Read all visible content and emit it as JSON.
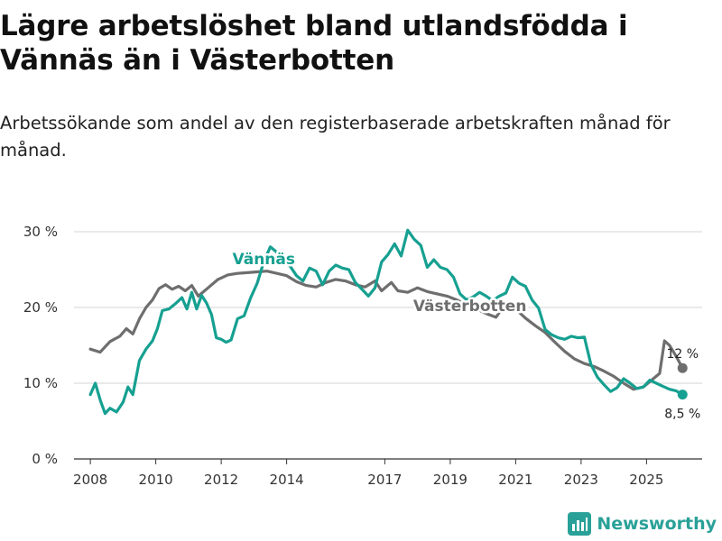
{
  "title": "Lägre arbetslöshet bland utlandsfödda i Vännäs än i Västerbotten",
  "subtitle": "Arbetssökande som andel av den registerbaserade arbetskraften månad för månad.",
  "brand": {
    "name": "Newsworthy",
    "icon": "newsworthy-logo-icon",
    "color": "#2aa198"
  },
  "chart_data": {
    "type": "line",
    "ylim": [
      0,
      30
    ],
    "xlim": [
      2007.5,
      2026.7
    ],
    "y_ticks": [
      {
        "value": 0,
        "label": "0 %"
      },
      {
        "value": 10,
        "label": "10 %"
      },
      {
        "value": 20,
        "label": "20 %"
      },
      {
        "value": 30,
        "label": "30 %"
      }
    ],
    "x_ticks": [
      {
        "value": 2008,
        "label": "2008"
      },
      {
        "value": 2010,
        "label": "2010"
      },
      {
        "value": 2012,
        "label": "2012"
      },
      {
        "value": 2014,
        "label": "2014"
      },
      {
        "value": 2017,
        "label": "2017"
      },
      {
        "value": 2019,
        "label": "2019"
      },
      {
        "value": 2021,
        "label": "2021"
      },
      {
        "value": 2023,
        "label": "2023"
      },
      {
        "value": 2025,
        "label": "2025"
      }
    ],
    "grid": true,
    "series": [
      {
        "name": "Västerbotten",
        "color": "#6e6e6e",
        "end_label": "12 %",
        "points": [
          [
            2008.0,
            14.5
          ],
          [
            2008.3,
            14.1
          ],
          [
            2008.6,
            15.5
          ],
          [
            2008.9,
            16.2
          ],
          [
            2009.1,
            17.2
          ],
          [
            2009.3,
            16.5
          ],
          [
            2009.5,
            18.5
          ],
          [
            2009.7,
            20.0
          ],
          [
            2009.9,
            21.0
          ],
          [
            2010.1,
            22.5
          ],
          [
            2010.3,
            23.0
          ],
          [
            2010.5,
            22.4
          ],
          [
            2010.7,
            22.8
          ],
          [
            2010.9,
            22.2
          ],
          [
            2011.1,
            22.9
          ],
          [
            2011.3,
            21.5
          ],
          [
            2011.6,
            22.6
          ],
          [
            2011.9,
            23.7
          ],
          [
            2012.2,
            24.3
          ],
          [
            2012.5,
            24.5
          ],
          [
            2012.8,
            24.6
          ],
          [
            2013.1,
            24.7
          ],
          [
            2013.4,
            24.8
          ],
          [
            2013.7,
            24.5
          ],
          [
            2014.0,
            24.2
          ],
          [
            2014.3,
            23.4
          ],
          [
            2014.6,
            22.9
          ],
          [
            2014.9,
            22.7
          ],
          [
            2015.2,
            23.3
          ],
          [
            2015.5,
            23.7
          ],
          [
            2015.8,
            23.5
          ],
          [
            2016.1,
            23.0
          ],
          [
            2016.4,
            22.7
          ],
          [
            2016.7,
            23.5
          ],
          [
            2016.9,
            22.2
          ],
          [
            2017.2,
            23.3
          ],
          [
            2017.4,
            22.2
          ],
          [
            2017.7,
            22.0
          ],
          [
            2018.0,
            22.6
          ],
          [
            2018.3,
            22.1
          ],
          [
            2018.6,
            21.8
          ],
          [
            2018.9,
            21.5
          ],
          [
            2019.2,
            21.0
          ],
          [
            2019.5,
            20.3
          ],
          [
            2019.8,
            19.8
          ],
          [
            2020.1,
            19.2
          ],
          [
            2020.4,
            18.7
          ],
          [
            2020.7,
            20.6
          ],
          [
            2021.0,
            19.8
          ],
          [
            2021.3,
            18.6
          ],
          [
            2021.6,
            17.6
          ],
          [
            2021.9,
            16.7
          ],
          [
            2022.2,
            15.4
          ],
          [
            2022.5,
            14.2
          ],
          [
            2022.8,
            13.2
          ],
          [
            2023.1,
            12.6
          ],
          [
            2023.4,
            12.2
          ],
          [
            2023.7,
            11.6
          ],
          [
            2024.0,
            10.9
          ],
          [
            2024.3,
            10.0
          ],
          [
            2024.6,
            9.2
          ],
          [
            2024.9,
            9.5
          ],
          [
            2025.1,
            10.2
          ],
          [
            2025.4,
            11.3
          ],
          [
            2025.55,
            15.6
          ],
          [
            2025.7,
            15.0
          ],
          [
            2025.9,
            13.6
          ],
          [
            2026.1,
            12.0
          ]
        ]
      },
      {
        "name": "Vännäs",
        "color": "#16a091",
        "end_label": "8,5 %",
        "points": [
          [
            2008.0,
            8.5
          ],
          [
            2008.15,
            10.0
          ],
          [
            2008.3,
            7.8
          ],
          [
            2008.45,
            6.0
          ],
          [
            2008.6,
            6.7
          ],
          [
            2008.8,
            6.2
          ],
          [
            2009.0,
            7.5
          ],
          [
            2009.15,
            9.5
          ],
          [
            2009.3,
            8.5
          ],
          [
            2009.5,
            13.0
          ],
          [
            2009.7,
            14.5
          ],
          [
            2009.9,
            15.6
          ],
          [
            2010.05,
            17.2
          ],
          [
            2010.2,
            19.6
          ],
          [
            2010.4,
            19.8
          ],
          [
            2010.6,
            20.5
          ],
          [
            2010.8,
            21.3
          ],
          [
            2010.95,
            19.8
          ],
          [
            2011.1,
            22.0
          ],
          [
            2011.25,
            19.8
          ],
          [
            2011.4,
            21.6
          ],
          [
            2011.55,
            20.6
          ],
          [
            2011.7,
            19.1
          ],
          [
            2011.85,
            16.0
          ],
          [
            2012.0,
            15.8
          ],
          [
            2012.15,
            15.4
          ],
          [
            2012.3,
            15.7
          ],
          [
            2012.5,
            18.5
          ],
          [
            2012.7,
            18.9
          ],
          [
            2012.9,
            21.3
          ],
          [
            2013.1,
            23.2
          ],
          [
            2013.3,
            26.0
          ],
          [
            2013.5,
            28.0
          ],
          [
            2013.7,
            27.3
          ],
          [
            2013.9,
            26.0
          ],
          [
            2014.1,
            25.5
          ],
          [
            2014.3,
            24.2
          ],
          [
            2014.5,
            23.5
          ],
          [
            2014.7,
            25.2
          ],
          [
            2014.9,
            24.8
          ],
          [
            2015.1,
            23.0
          ],
          [
            2015.3,
            24.8
          ],
          [
            2015.5,
            25.6
          ],
          [
            2015.7,
            25.2
          ],
          [
            2015.9,
            25.0
          ],
          [
            2016.1,
            23.3
          ],
          [
            2016.3,
            22.4
          ],
          [
            2016.5,
            21.5
          ],
          [
            2016.7,
            22.6
          ],
          [
            2016.9,
            26.0
          ],
          [
            2017.1,
            27.0
          ],
          [
            2017.3,
            28.4
          ],
          [
            2017.5,
            26.8
          ],
          [
            2017.7,
            30.2
          ],
          [
            2017.9,
            29.0
          ],
          [
            2018.1,
            28.2
          ],
          [
            2018.3,
            25.3
          ],
          [
            2018.5,
            26.3
          ],
          [
            2018.7,
            25.3
          ],
          [
            2018.9,
            25.0
          ],
          [
            2019.1,
            24.0
          ],
          [
            2019.3,
            21.8
          ],
          [
            2019.5,
            21.0
          ],
          [
            2019.7,
            21.4
          ],
          [
            2019.9,
            22.0
          ],
          [
            2020.1,
            21.5
          ],
          [
            2020.3,
            20.9
          ],
          [
            2020.5,
            21.5
          ],
          [
            2020.7,
            21.9
          ],
          [
            2020.9,
            24.0
          ],
          [
            2021.1,
            23.2
          ],
          [
            2021.3,
            22.8
          ],
          [
            2021.5,
            21.0
          ],
          [
            2021.7,
            19.9
          ],
          [
            2021.9,
            17.1
          ],
          [
            2022.1,
            16.4
          ],
          [
            2022.3,
            16.0
          ],
          [
            2022.5,
            15.8
          ],
          [
            2022.7,
            16.2
          ],
          [
            2022.9,
            16.0
          ],
          [
            2023.1,
            16.1
          ],
          [
            2023.3,
            12.5
          ],
          [
            2023.5,
            10.8
          ],
          [
            2023.7,
            9.8
          ],
          [
            2023.9,
            8.9
          ],
          [
            2024.1,
            9.4
          ],
          [
            2024.3,
            10.6
          ],
          [
            2024.5,
            10.0
          ],
          [
            2024.7,
            9.3
          ],
          [
            2024.9,
            9.5
          ],
          [
            2025.1,
            10.4
          ],
          [
            2025.3,
            10.0
          ],
          [
            2025.5,
            9.6
          ],
          [
            2025.7,
            9.2
          ],
          [
            2025.9,
            9.0
          ],
          [
            2026.1,
            8.5
          ]
        ]
      }
    ],
    "labels": [
      {
        "series": "Vännäs",
        "text": "Vännäs",
        "x": 2013.3,
        "y": 25.7
      },
      {
        "series": "Västerbotten",
        "text": "Västerbotten",
        "x": 2019.6,
        "y": 19.5
      }
    ]
  }
}
